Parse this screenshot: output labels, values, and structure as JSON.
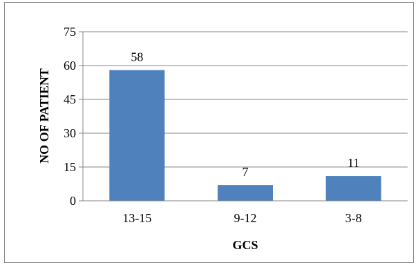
{
  "chart_data": {
    "type": "bar",
    "title": "",
    "xlabel": "GCS",
    "ylabel": "NO OF PATIENT",
    "categories": [
      "13-15",
      "9-12",
      "3-8"
    ],
    "values": [
      58,
      7,
      11
    ],
    "data_labels": [
      "58",
      "7",
      "11"
    ],
    "ylim": [
      0,
      75
    ],
    "yticks": [
      0,
      15,
      30,
      45,
      60,
      75
    ],
    "ytick_labels": [
      "0",
      "15",
      "30",
      "45",
      "60",
      "75"
    ],
    "grid": true,
    "legend": "none",
    "bar_color": "#4f81bd",
    "grid_color": "#868686"
  }
}
